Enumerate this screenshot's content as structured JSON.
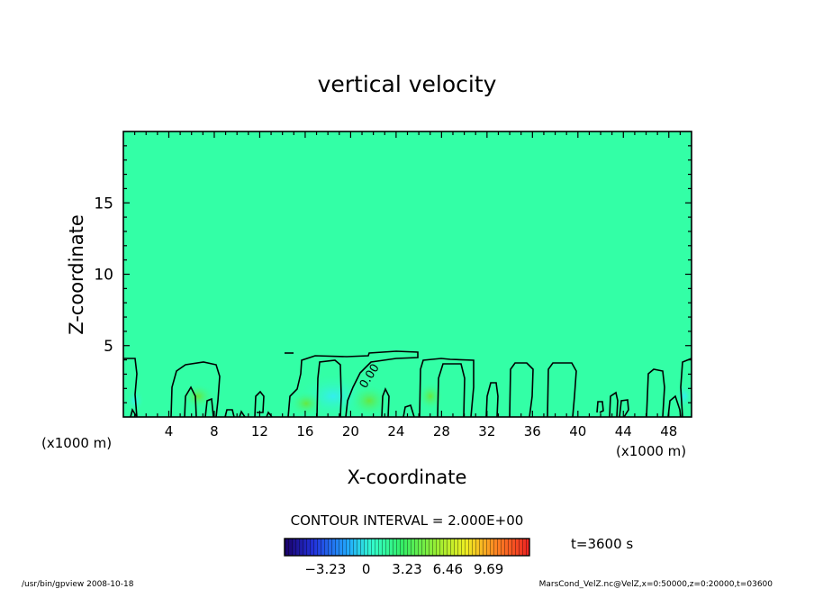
{
  "chart_data": {
    "type": "heatmap",
    "title": "vertical velocity",
    "xlabel": "X-coordinate",
    "ylabel": "Z-coordinate",
    "x_unit": "(x1000 m)",
    "x_unit_right": "(x1000 m)",
    "xlim": [
      0,
      50
    ],
    "ylim": [
      0,
      20
    ],
    "x_ticks": [
      "4",
      "8",
      "12",
      "16",
      "20",
      "24",
      "28",
      "32",
      "36",
      "40",
      "44",
      "48"
    ],
    "y_ticks": [
      "5",
      "10",
      "15"
    ],
    "contour_label": "0.00",
    "contour_interval": "CONTOUR INTERVAL = 2.000E+00",
    "time_label": "t=3600 s",
    "colorbar": {
      "range": [
        -6.46,
        12.92
      ],
      "ticks": [
        "-3.23",
        "0",
        "3.23",
        "6.46",
        "9.69"
      ]
    },
    "colors": {
      "background_field": "#33ffa6",
      "updraft": "#33f0e0",
      "positive": "#66e840"
    },
    "footer_left": "/usr/bin/gpview   2008-10-18",
    "footer_right": "MarsCond_VelZ.nc@VelZ,x=0:50000,z=0:20000,t=03600"
  }
}
